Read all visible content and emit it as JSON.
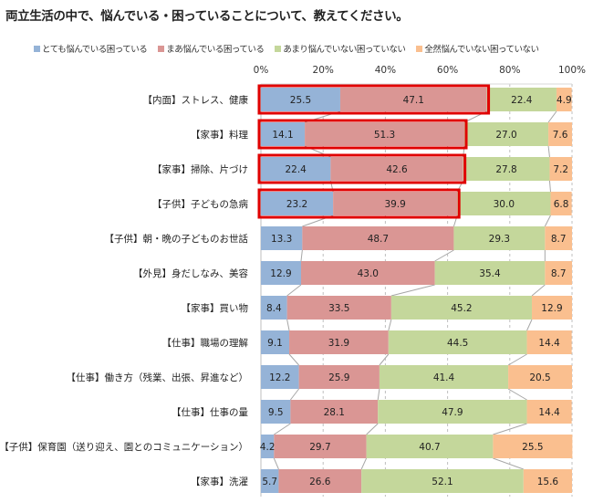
{
  "chart_data": {
    "type": "bar",
    "orientation": "horizontal",
    "stacked": "percent",
    "title": "両立生活の中で、悩んでいる・困っていることについて、教えてください。",
    "xlabel": "",
    "ylabel": "",
    "xlim": [
      0,
      100
    ],
    "x_ticks": [
      "0%",
      "20%",
      "40%",
      "60%",
      "80%",
      "100%"
    ],
    "grid": true,
    "legend_position": "top",
    "categories": [
      "【内面】ストレス、健康",
      "【家事】料理",
      "【家事】掃除、片づけ",
      "【子供】子どもの急病",
      "【子供】朝・晩の子どものお世話",
      "【外見】身だしなみ、美容",
      "【家事】買い物",
      "【仕事】職場の理解",
      "【仕事】働き方（残業、出張、昇進など）",
      "【仕事】仕事の量",
      "【子供】保育園（送り迎え、園とのコミュニケーション）",
      "【家事】洗濯"
    ],
    "series": [
      {
        "name": "とても悩んでいる困っている",
        "color": "#95b3d7",
        "values": [
          25.5,
          14.1,
          22.4,
          23.2,
          13.3,
          12.9,
          8.4,
          9.1,
          12.2,
          9.5,
          4.2,
          5.7
        ]
      },
      {
        "name": "まあ悩んでいる困っている",
        "color": "#da9694",
        "values": [
          47.1,
          51.3,
          42.6,
          39.9,
          48.7,
          43.0,
          33.5,
          31.9,
          25.9,
          28.1,
          29.7,
          26.6
        ]
      },
      {
        "name": "あまり悩んでいない困っていない",
        "color": "#c4d79b",
        "values": [
          22.4,
          27.0,
          27.8,
          30.0,
          29.3,
          35.4,
          45.2,
          44.5,
          41.4,
          47.9,
          40.7,
          52.1
        ]
      },
      {
        "name": "全然悩んでいない困っていない",
        "color": "#fabf8f",
        "values": [
          4.9,
          7.6,
          7.2,
          6.8,
          8.7,
          8.7,
          12.9,
          14.4,
          20.5,
          14.4,
          25.5,
          15.6
        ]
      }
    ],
    "highlighted_rows": [
      0,
      1,
      2,
      3
    ],
    "highlight_color": "#e00000",
    "series_lines": true
  }
}
